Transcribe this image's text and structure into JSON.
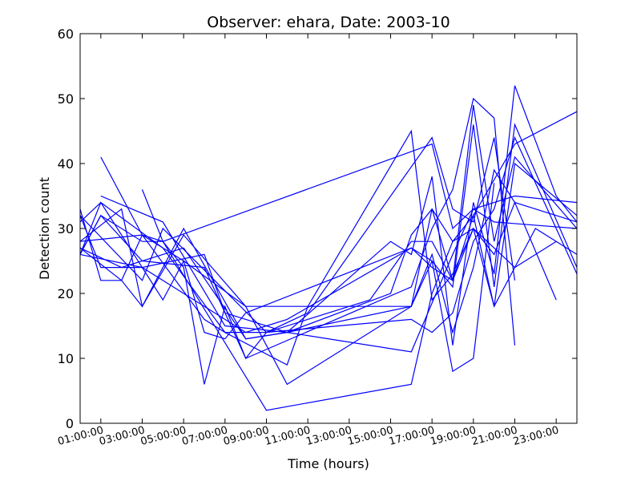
{
  "chart_data": {
    "type": "line",
    "title": "Observer: ehara, Date: 2003-10",
    "xlabel": "Time (hours)",
    "ylabel": "Detection count",
    "xlim": [
      "00:00:00",
      "24:00:00"
    ],
    "ylim": [
      0,
      60
    ],
    "grid": false,
    "legend": "none",
    "line_color": "#0000ff",
    "x_ticks": [
      "01:00:00",
      "03:00:00",
      "05:00:00",
      "07:00:00",
      "09:00:00",
      "11:00:00",
      "13:00:00",
      "15:00:00",
      "17:00:00",
      "19:00:00",
      "21:00:00",
      "23:00:00"
    ],
    "y_ticks": [
      0,
      10,
      20,
      30,
      40,
      50,
      60
    ],
    "series": [
      {
        "x": [
          "00:00:00",
          "01:00:00",
          "02:00:00",
          "03:00:00",
          "05:00:00",
          "08:00:00",
          "10:00:00",
          "16:00:00",
          "18:00:00",
          "19:00:00",
          "20:00:00",
          "24:00:00"
        ],
        "y": [
          33,
          22,
          22,
          18,
          30,
          13,
          14,
          11,
          26,
          33,
          31,
          30
        ]
      },
      {
        "x": [
          "00:00:00",
          "01:00:00",
          "03:00:00",
          "04:00:00",
          "09:00:00",
          "16:00:00",
          "17:00:00",
          "18:00:00",
          "19:00:00",
          "21:00:00",
          "24:00:00"
        ],
        "y": [
          26,
          32,
          28,
          28,
          2,
          6,
          20,
          28,
          32,
          43,
          48
        ]
      },
      {
        "x": [
          "01:00:00",
          "03:00:00",
          "06:00:00",
          "07:00:00",
          "09:00:00",
          "11:00:00",
          "17:00:00",
          "18:00:00",
          "19:00:00",
          "20:00:00",
          "21:00:00"
        ],
        "y": [
          41,
          29,
          16,
          14,
          14,
          17,
          44,
          33,
          31,
          44,
          22
        ]
      },
      {
        "x": [
          "03:00:00",
          "04:00:00",
          "17:00:00",
          "18:00:00",
          "19:00:00",
          "21:00:00",
          "24:00:00"
        ],
        "y": [
          36,
          28,
          43,
          30,
          33,
          35,
          34
        ]
      },
      {
        "x": [
          "00:00:00",
          "03:00:00",
          "04:00:00",
          "09:00:00",
          "16:00:00",
          "17:00:00",
          "18:00:00",
          "19:00:00",
          "20:00:00",
          "21:00:00",
          "24:00:00"
        ],
        "y": [
          32,
          22,
          30,
          14,
          16,
          14,
          17,
          28,
          33,
          44,
          23
        ]
      },
      {
        "x": [
          "00:00:00",
          "02:00:00",
          "03:00:00",
          "05:00:00",
          "08:00:00",
          "10:00:00",
          "16:00:00",
          "17:00:00",
          "18:00:00",
          "19:00:00",
          "20:00:00",
          "21:00:00",
          "24:00:00"
        ],
        "y": [
          27,
          22,
          29,
          25,
          18,
          6,
          18,
          33,
          22,
          49,
          28,
          41,
          30
        ]
      },
      {
        "x": [
          "00:00:00",
          "02:00:00",
          "05:00:00",
          "08:00:00",
          "10:00:00",
          "16:00:00",
          "17:00:00",
          "18:00:00",
          "19:00:00",
          "20:00:00",
          "21:00:00",
          "24:00:00"
        ],
        "y": [
          27,
          24,
          27,
          13,
          14,
          18,
          26,
          14,
          24,
          39,
          34,
          31
        ]
      },
      {
        "x": [
          "01:00:00",
          "04:00:00",
          "07:00:00",
          "10:00:00",
          "15:00:00",
          "16:00:00",
          "17:00:00",
          "18:00:00",
          "19:00:00",
          "20:00:00",
          "21:00:00",
          "23:00:00",
          "24:00:00"
        ],
        "y": [
          35,
          31,
          15,
          14,
          28,
          26,
          38,
          12,
          34,
          23,
          52,
          35,
          31
        ]
      },
      {
        "x": [
          "00:00:00",
          "03:00:00",
          "06:00:00",
          "07:00:00",
          "10:00:00",
          "15:00:00",
          "16:00:00",
          "17:00:00",
          "18:00:00",
          "19:00:00",
          "20:00:00",
          "21:00:00",
          "24:00:00"
        ],
        "y": [
          26,
          24,
          26,
          17,
          14,
          20,
          29,
          33,
          28,
          30,
          18,
          40,
          32
        ]
      },
      {
        "x": [
          "00:00:00",
          "01:00:00",
          "04:00:00",
          "07:00:00",
          "10:00:00",
          "11:00:00",
          "16:00:00",
          "17:00:00",
          "18:00:00",
          "19:00:00",
          "20:00:00",
          "21:00:00",
          "23:00:00"
        ],
        "y": [
          26,
          34,
          27,
          14,
          9,
          18,
          45,
          19,
          23,
          30,
          26,
          34,
          19
        ]
      },
      {
        "x": [
          "00:00:00",
          "02:00:00",
          "03:00:00",
          "05:00:00",
          "08:00:00",
          "10:00:00",
          "16:00:00",
          "17:00:00",
          "18:00:00",
          "19:00:00",
          "20:00:00",
          "21:00:00",
          "24:00:00"
        ],
        "y": [
          28,
          33,
          18,
          29,
          18,
          18,
          18,
          25,
          21,
          46,
          21,
          46,
          24
        ]
      },
      {
        "x": [
          "00:00:00",
          "01:00:00",
          "03:00:00",
          "06:00:00",
          "08:00:00",
          "09:00:00",
          "14:00:00",
          "16:00:00",
          "17:00:00",
          "18:00:00",
          "19:00:00",
          "20:00:00",
          "22:00:00",
          "24:00:00"
        ],
        "y": [
          26,
          32,
          25,
          24,
          10,
          14,
          19,
          28,
          28,
          22,
          32,
          18,
          30,
          26
        ]
      },
      {
        "x": [
          "00:00:00",
          "03:00:00",
          "04:00:00",
          "05:00:00",
          "06:00:00",
          "07:00:00",
          "08:00:00",
          "16:00:00",
          "17:00:00",
          "18:00:00",
          "19:00:00",
          "20:00:00",
          "21:00:00"
        ],
        "y": [
          28,
          29,
          28,
          24,
          6,
          18,
          10,
          21,
          30,
          36,
          50,
          47,
          12
        ]
      },
      {
        "x": [
          "00:00:00",
          "01:00:00",
          "03:00:00",
          "08:00:00",
          "09:00:00",
          "10:00:00",
          "16:00:00",
          "17:00:00",
          "18:00:00",
          "19:00:00",
          "20:00:00",
          "21:00:00",
          "23:00:00"
        ],
        "y": [
          32,
          24,
          24,
          14,
          15,
          16,
          27,
          24,
          22,
          30,
          27,
          24,
          28
        ]
      },
      {
        "x": [
          "00:00:00",
          "01:00:00",
          "04:00:00",
          "05:00:00",
          "06:00:00",
          "07:00:00",
          "08:00:00",
          "16:00:00",
          "17:00:00",
          "18:00:00",
          "19:00:00",
          "20:00:00"
        ],
        "y": [
          31,
          34,
          19,
          25,
          14,
          13,
          17,
          27,
          25,
          8,
          10,
          37
        ]
      }
    ]
  }
}
